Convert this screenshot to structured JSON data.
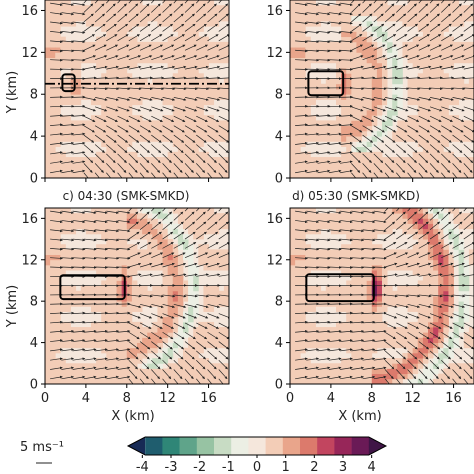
{
  "chart_data": {
    "type": "heatmap",
    "panels": [
      {
        "id": "a",
        "title": "",
        "ylabel": "Y (km)",
        "xlabel": "",
        "box": {
          "x0": 1.7,
          "x1": 2.9,
          "y0": 8.3,
          "y1": 9.9
        },
        "section_line_y": 9.0,
        "front_x": 3.0,
        "front_intensity": 0.8,
        "arc_radius": 0
      },
      {
        "id": "b",
        "title": "",
        "ylabel": "",
        "xlabel": "",
        "box": {
          "x0": 1.8,
          "x1": 5.2,
          "y0": 7.9,
          "y1": 10.2
        },
        "section_line_y": null,
        "front_x": 5.3,
        "front_intensity": 1.6,
        "arc_radius": 4.5
      },
      {
        "id": "c",
        "title": "c) 04:30 (SMK-SMKD)",
        "ylabel": "Y (km)",
        "xlabel": "X (km)",
        "box": {
          "x0": 1.5,
          "x1": 7.8,
          "y0": 8.2,
          "y1": 10.5
        },
        "section_line_y": null,
        "front_x": 7.8,
        "front_intensity": 2.2,
        "arc_radius": 6
      },
      {
        "id": "d",
        "title": "d) 05:30 (SMK-SMKD)",
        "ylabel": "",
        "xlabel": "X (km)",
        "box": {
          "x0": 1.6,
          "x1": 8.2,
          "y0": 8.0,
          "y1": 10.6
        },
        "section_line_y": null,
        "front_x": 8.4,
        "front_intensity": 3.5,
        "arc_radius": 8
      }
    ],
    "xlim": [
      0,
      18
    ],
    "ylim": [
      0,
      17
    ],
    "xticks": [
      0,
      4,
      8,
      12,
      16
    ],
    "yticks": [
      0,
      4,
      8,
      12,
      16
    ],
    "colorbar": {
      "range": [
        -4.5,
        4.5
      ],
      "ticks": [
        -4,
        -3,
        -2,
        -1,
        0,
        1,
        2,
        3,
        4
      ],
      "colors": [
        "#172a55",
        "#1f5d6e",
        "#2f8677",
        "#5fa48a",
        "#97c3a3",
        "#c8dcc4",
        "#ecefe4",
        "#f5e7dc",
        "#f3cdb7",
        "#e9a58b",
        "#dc7a6c",
        "#c2455f",
        "#972659",
        "#6a1a56",
        "#3f1546"
      ],
      "extend": "both"
    },
    "reference_vector": {
      "label": "5 ms⁻¹",
      "magnitude": 5
    }
  },
  "labels": {
    "ylabel": "Y (km)",
    "xlabel": "X (km)",
    "title_c": "c) 04:30 (SMK-SMKD)",
    "title_d": "d) 05:30 (SMK-SMKD)",
    "ref_vector": "5 ms⁻¹"
  }
}
